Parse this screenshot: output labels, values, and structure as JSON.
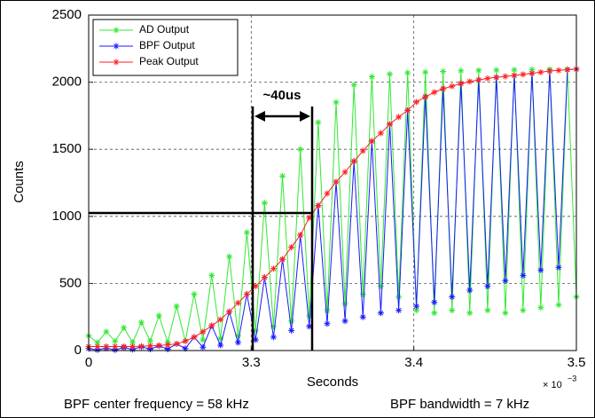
{
  "chart_data": {
    "type": "line",
    "xlabel": "Seconds",
    "ylabel": "Counts",
    "x_scale_base": "× 10",
    "x_scale_exponent": "−3",
    "xscale": "broken",
    "xlim": [
      0,
      3.5
    ],
    "xticks": [
      0,
      3.3,
      3.4,
      3.5
    ],
    "ylim": [
      0,
      2500
    ],
    "yticks": [
      0,
      500,
      1000,
      1500,
      2000,
      2500
    ],
    "grid": true,
    "legend": "upper left",
    "annotations": [
      "~40us"
    ],
    "footnotes": [
      "BPF center frequency = 58 kHz",
      "BPF bandwidth = 7 kHz"
    ],
    "x": [
      0,
      0.178,
      0.357,
      0.535,
      0.714,
      0.892,
      1.07,
      1.249,
      1.427,
      1.605,
      1.784,
      1.962,
      2.141,
      2.319,
      2.497,
      2.676,
      2.854,
      3.032,
      3.211,
      3.3027,
      3.3082,
      3.3137,
      3.3192,
      3.3247,
      3.3302,
      3.3357,
      3.3412,
      3.3467,
      3.3522,
      3.3577,
      3.3632,
      3.3687,
      3.3742,
      3.3797,
      3.3852,
      3.3907,
      3.3962,
      3.4016,
      3.4071,
      3.4126,
      3.418,
      3.4235,
      3.429,
      3.4344,
      3.4399,
      3.4454,
      3.4508,
      3.4563,
      3.4618,
      3.4672,
      3.4727,
      3.4781,
      3.4836,
      3.4891,
      3.4945,
      3.5
    ],
    "series": [
      {
        "name": "AD Output",
        "color": "#33e833",
        "values": [
          110,
          60,
          140,
          70,
          170,
          60,
          210,
          70,
          260,
          60,
          330,
          70,
          420,
          80,
          560,
          90,
          700,
          110,
          880,
          150,
          1100,
          180,
          1300,
          220,
          1500,
          260,
          1700,
          300,
          1850,
          350,
          1980,
          420,
          2040,
          480,
          2060,
          400,
          2070,
          300,
          2075,
          280,
          2080,
          300,
          2085,
          280,
          2088,
          300,
          2090,
          280,
          2092,
          300,
          2094,
          320,
          2095,
          340,
          2096,
          400
        ]
      },
      {
        "name": "BPF Output",
        "color": "#1a1aff",
        "values": [
          15,
          5,
          18,
          5,
          22,
          8,
          28,
          10,
          35,
          10,
          50,
          15,
          100,
          25,
          185,
          40,
          290,
          60,
          420,
          80,
          545,
          100,
          680,
          150,
          860,
          180,
          1080,
          200,
          1257,
          220,
          1410,
          250,
          1560,
          280,
          1687,
          300,
          1790,
          330,
          1890,
          360,
          1951,
          400,
          1990,
          450,
          2017,
          480,
          2036,
          520,
          2050,
          560,
          2066,
          600,
          2083,
          620,
          2093,
          2097
        ]
      },
      {
        "name": "Peak Output",
        "color": "#ff2020",
        "values": [
          30,
          30,
          30,
          30,
          30,
          30,
          32,
          35,
          38,
          42,
          50,
          70,
          100,
          140,
          185,
          231,
          290,
          355,
          420,
          480,
          545,
          610,
          680,
          770,
          860,
          990,
          1080,
          1170,
          1257,
          1330,
          1410,
          1488,
          1560,
          1620,
          1687,
          1740,
          1790,
          1852,
          1890,
          1925,
          1951,
          1970,
          1990,
          2005,
          2017,
          2028,
          2036,
          2043,
          2050,
          2058,
          2066,
          2074,
          2083,
          2088,
          2093,
          2097
        ]
      }
    ]
  }
}
